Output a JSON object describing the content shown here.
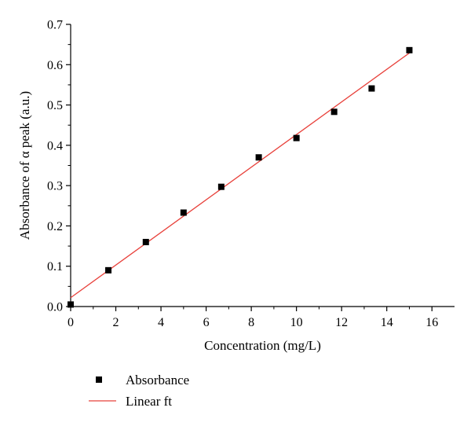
{
  "chart_data": {
    "type": "scatter",
    "title": "",
    "xlabel": "Concentration (mg/L)",
    "ylabel": "Absorbance of α peak (a.u.)",
    "xlim": [
      0,
      17
    ],
    "ylim": [
      0,
      0.7
    ],
    "x_ticks": [
      0,
      2,
      4,
      6,
      8,
      10,
      12,
      14,
      16
    ],
    "x_tick_labels": [
      "0",
      "2",
      "4",
      "6",
      "8",
      "10",
      "12",
      "14",
      "16"
    ],
    "y_ticks": [
      0,
      0.1,
      0.2,
      0.3,
      0.4,
      0.5,
      0.6,
      0.7
    ],
    "y_tick_labels": [
      "0.0",
      "0.1",
      "0.2",
      "0.3",
      "0.4",
      "0.5",
      "0.6",
      "0.7"
    ],
    "grid": false,
    "legend_position": "bottom-left",
    "colors": {
      "points": "#000000",
      "fit": "#e8403a",
      "axis": "#000000"
    },
    "series": [
      {
        "name": "Absorbance",
        "kind": "scatter",
        "x": [
          0,
          1.67,
          3.33,
          5.0,
          6.67,
          8.33,
          10.0,
          11.67,
          13.33,
          15.0
        ],
        "y": [
          0.005,
          0.09,
          0.16,
          0.233,
          0.297,
          0.37,
          0.418,
          0.483,
          0.541,
          0.636
        ]
      },
      {
        "name": "Linear ft",
        "kind": "line",
        "x": [
          0,
          15.0
        ],
        "y": [
          0.022,
          0.629
        ]
      }
    ]
  }
}
